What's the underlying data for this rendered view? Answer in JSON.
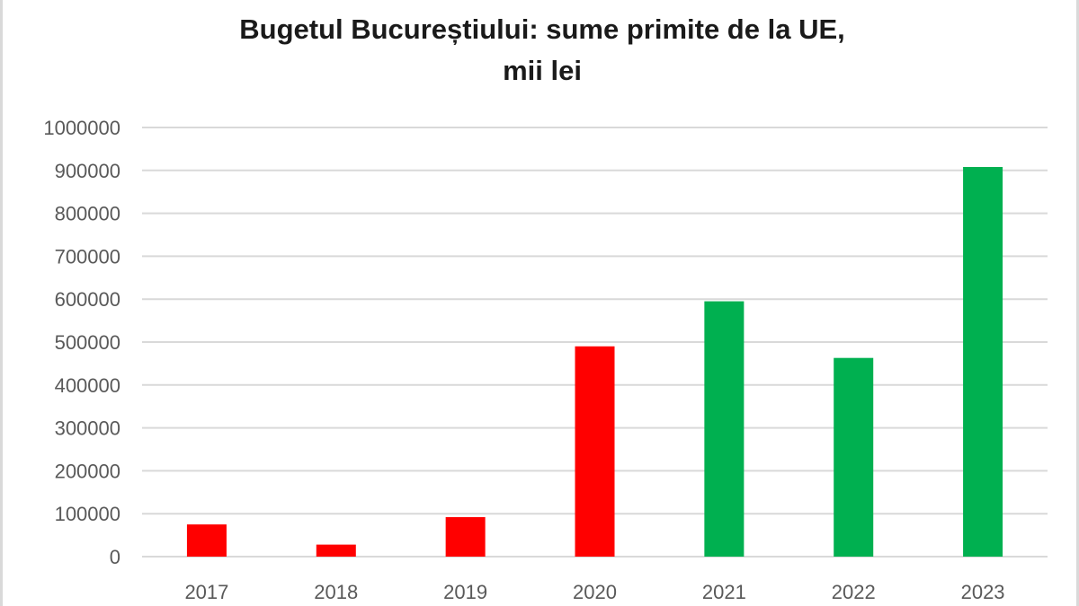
{
  "chart_data": {
    "type": "bar",
    "title": "Bugetul Bucureștiului: sume primite de la UE,",
    "subtitle": "mii lei",
    "xlabel": "",
    "ylabel": "",
    "categories": [
      "2017",
      "2018",
      "2019",
      "2020",
      "2021",
      "2022",
      "2023"
    ],
    "values": [
      75000,
      28000,
      92000,
      490000,
      595000,
      463000,
      908000
    ],
    "bar_colors": [
      "#ff0000",
      "#ff0000",
      "#ff0000",
      "#ff0000",
      "#00b050",
      "#00b050",
      "#00b050"
    ],
    "ylim": [
      0,
      1000000
    ],
    "yticks": [
      "0",
      "100000",
      "200000",
      "300000",
      "400000",
      "500000",
      "600000",
      "700000",
      "800000",
      "900000",
      "1000000"
    ],
    "grid": true,
    "legend": "none"
  },
  "colors": {
    "red": "#ff0000",
    "green": "#00b050",
    "gridline": "#d9d9d9",
    "tick_text": "#595959",
    "title_text": "#1a1a1a"
  }
}
